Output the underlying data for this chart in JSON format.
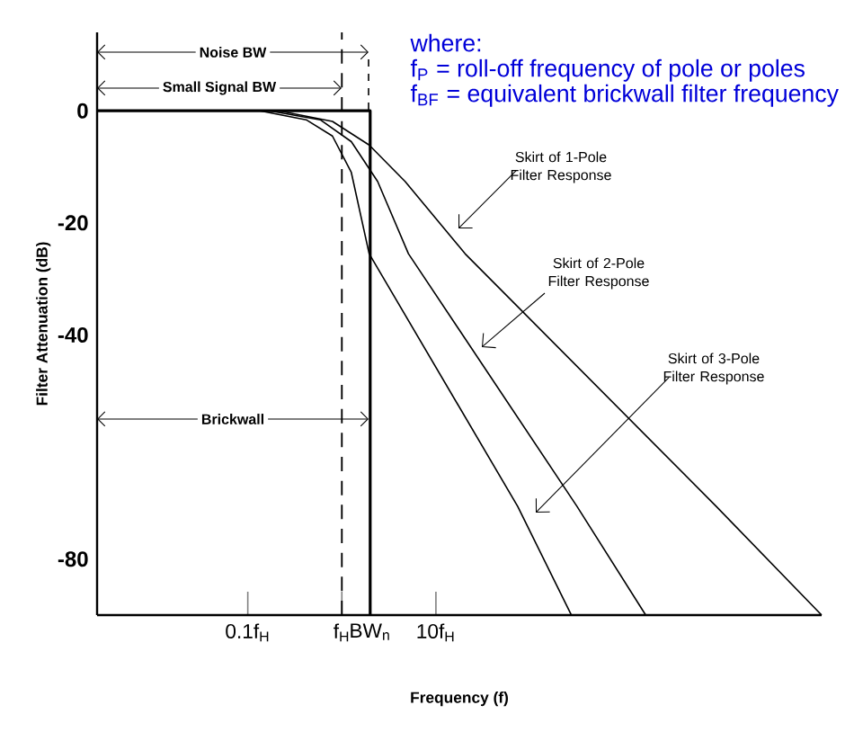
{
  "chart_data": {
    "type": "line",
    "xlabel": "Frequency (f)",
    "ylabel": "Filter Attenuation (dB)",
    "log": "x",
    "xlim": [
      0.0025,
      126000
    ],
    "ylim": [
      -90,
      14
    ],
    "xticks": [
      {
        "value": 0.1,
        "label": "0.1f$_{H}$"
      },
      {
        "value": 1,
        "label": "f$_{H}$"
      },
      {
        "value": 2,
        "label": "BW$_{n}$"
      },
      {
        "value": 10,
        "label": "10f$_{H}$"
      }
    ],
    "yticks": [
      0,
      -20,
      -40,
      -80
    ],
    "series": [
      {
        "color": "#000000",
        "x": [
          0.0025,
          2,
          2
        ],
        "values": [
          0,
          0,
          -90
        ]
      },
      {
        "color": "#000000",
        "x": [
          0.0025,
          0.135,
          0.417,
          0.794,
          1.26,
          1.95,
          74,
          275
        ],
        "values": [
          0,
          0,
          -1.6,
          -4.5,
          -11,
          -25.5,
          -70.6,
          -90
        ]
      },
      {
        "color": "#000000",
        "x": [
          0.0025,
          0.17,
          0.589,
          1.26,
          2.4,
          5.1,
          316,
          1700
        ],
        "values": [
          0,
          0,
          -1.6,
          -5.5,
          -12.6,
          -25.5,
          -70.6,
          -90
        ]
      },
      {
        "color": "#000000",
        "x": [
          0.0025,
          0.214,
          0.794,
          1.95,
          4.7,
          20.4,
          9550,
          126000
        ],
        "values": [
          0,
          0,
          -1.9,
          -6.1,
          -12.6,
          -25.5,
          -70.6,
          -90
        ]
      }
    ],
    "ref_lines": [
      {
        "axis": "x",
        "value": 1,
        "line_style": "dashed",
        "color": "#000000"
      }
    ],
    "annotations": [
      "Noise BW",
      "Small Signal BW",
      "Brickwall",
      "Skirt of 1-Pole Filter Response",
      "Skirt of 2-Pole Filter Response",
      "Skirt of 3-Pole Filter Response",
      "where:",
      "f$_{P}$ = roll-off frequency of pole or poles",
      "f$_{BF}$ = equivalent brickwall filter frequency"
    ],
    "marker": "none",
    "line_style": "solid"
  }
}
